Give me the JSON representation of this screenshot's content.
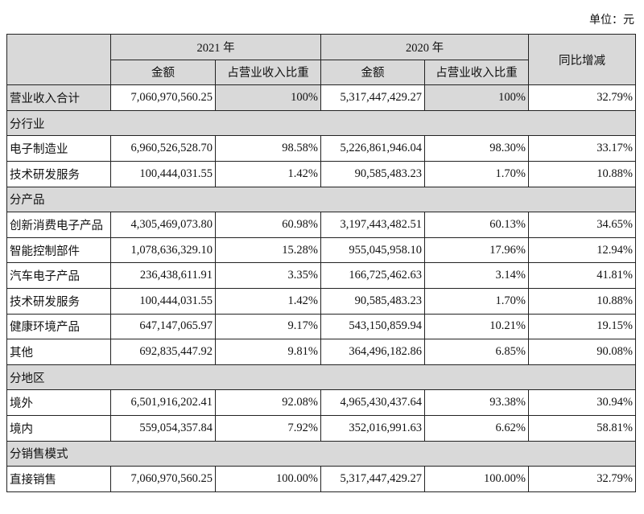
{
  "unit_label": "单位：元",
  "header": {
    "year1": "2021 年",
    "year2": "2020 年",
    "amount": "金额",
    "share": "占营业收入比重",
    "yoy": "同比增减"
  },
  "total": {
    "label": "营业收入合计",
    "a2021": "7,060,970,560.25",
    "p2021": "100%",
    "a2020": "5,317,447,429.27",
    "p2020": "100%",
    "yoy": "32.79%"
  },
  "sections": [
    {
      "title": "分行业",
      "rows": [
        {
          "label": "电子制造业",
          "a2021": "6,960,526,528.70",
          "p2021": "98.58%",
          "a2020": "5,226,861,946.04",
          "p2020": "98.30%",
          "yoy": "33.17%"
        },
        {
          "label": "技术研发服务",
          "a2021": "100,444,031.55",
          "p2021": "1.42%",
          "a2020": "90,585,483.23",
          "p2020": "1.70%",
          "yoy": "10.88%"
        }
      ]
    },
    {
      "title": "分产品",
      "rows": [
        {
          "label": "创新消费电子产品",
          "a2021": "4,305,469,073.80",
          "p2021": "60.98%",
          "a2020": "3,197,443,482.51",
          "p2020": "60.13%",
          "yoy": "34.65%"
        },
        {
          "label": "智能控制部件",
          "a2021": "1,078,636,329.10",
          "p2021": "15.28%",
          "a2020": "955,045,958.10",
          "p2020": "17.96%",
          "yoy": "12.94%"
        },
        {
          "label": "汽车电子产品",
          "a2021": "236,438,611.91",
          "p2021": "3.35%",
          "a2020": "166,725,462.63",
          "p2020": "3.14%",
          "yoy": "41.81%"
        },
        {
          "label": "技术研发服务",
          "a2021": "100,444,031.55",
          "p2021": "1.42%",
          "a2020": "90,585,483.23",
          "p2020": "1.70%",
          "yoy": "10.88%"
        },
        {
          "label": "健康环境产品",
          "a2021": "647,147,065.97",
          "p2021": "9.17%",
          "a2020": "543,150,859.94",
          "p2020": "10.21%",
          "yoy": "19.15%"
        },
        {
          "label": "其他",
          "a2021": "692,835,447.92",
          "p2021": "9.81%",
          "a2020": "364,496,182.86",
          "p2020": "6.85%",
          "yoy": "90.08%"
        }
      ]
    },
    {
      "title": "分地区",
      "rows": [
        {
          "label": "境外",
          "a2021": "6,501,916,202.41",
          "p2021": "92.08%",
          "a2020": "4,965,430,437.64",
          "p2020": "93.38%",
          "yoy": "30.94%"
        },
        {
          "label": "境内",
          "a2021": "559,054,357.84",
          "p2021": "7.92%",
          "a2020": "352,016,991.63",
          "p2020": "6.62%",
          "yoy": "58.81%"
        }
      ]
    },
    {
      "title": "分销售模式",
      "rows": [
        {
          "label": "直接销售",
          "a2021": "7,060,970,560.25",
          "p2021": "100.00%",
          "a2020": "5,317,447,429.27",
          "p2020": "100.00%",
          "yoy": "32.79%"
        }
      ]
    }
  ]
}
